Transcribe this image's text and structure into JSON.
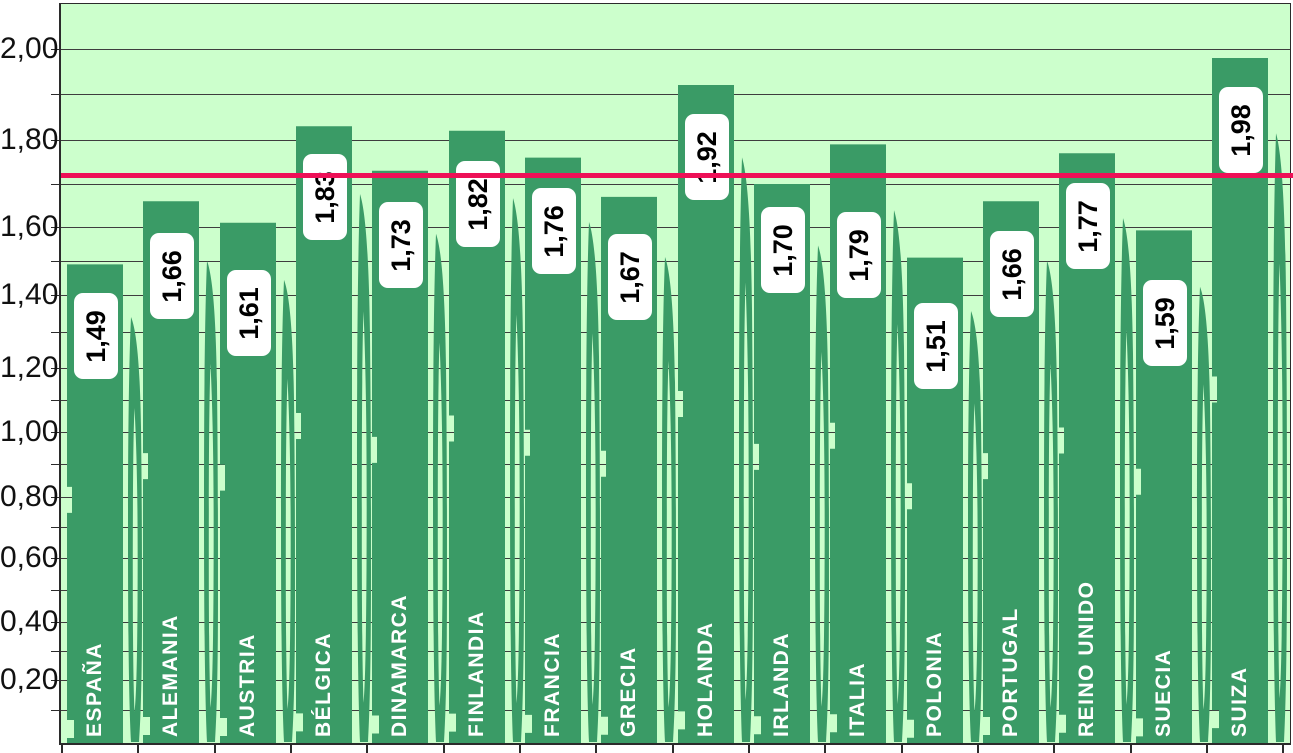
{
  "chart_data": {
    "type": "bar",
    "title": "",
    "xlabel": "",
    "ylabel": "",
    "categories": [
      "ESPAÑA",
      "ALEMANIA",
      "AUSTRIA",
      "BÉLGICA",
      "DINAMARCA",
      "FINLANDIA",
      "FRANCIA",
      "GRECIA",
      "HOLANDA",
      "IRLANDA",
      "ITALIA",
      "POLONIA",
      "PORTUGAL",
      "REINO UNIDO",
      "SUECIA",
      "SUIZA"
    ],
    "values": [
      1.49,
      1.66,
      1.61,
      1.83,
      1.73,
      1.82,
      1.76,
      1.67,
      1.92,
      1.7,
      1.79,
      1.51,
      1.66,
      1.77,
      1.59,
      1.98
    ],
    "value_labels": [
      "1,49",
      "1,66",
      "1,61",
      "1,83",
      "1,73",
      "1,82",
      "1,76",
      "1,67",
      "1,92",
      "1,70",
      "1,79",
      "1,51",
      "1,66",
      "1,77",
      "1,59",
      "1,98"
    ],
    "y_axis": {
      "tick_labels": [
        "2,00",
        "1,80",
        "1,60",
        "1,40",
        "1,20",
        "1,00",
        "0,80",
        "0,60",
        "0,40",
        "0,20"
      ],
      "tick_values": [
        2.0,
        1.8,
        1.6,
        1.4,
        1.2,
        1.0,
        0.8,
        0.6,
        0.4,
        0.2
      ],
      "minor_step": 0.1,
      "range": [
        0,
        2.1
      ],
      "decimal_separator": ","
    },
    "reference_line": {
      "value": 1.72,
      "orientation": "horizontal",
      "color": "#ee1057"
    },
    "grid": "horizontal minor lines every 0,10",
    "legend": "none",
    "colors": {
      "bar": "#3a9b66",
      "plot_background": "#ccffcc",
      "outer_background": "#ffffff",
      "gridline": "#3d3d3d",
      "axis_frame": "#2b2b2b",
      "reference_line": "#ee1057",
      "value_label_box": "#ffffff",
      "value_label_text": "#000000",
      "category_label_text": "#ffffff",
      "axis_label_text": "#111111"
    }
  }
}
